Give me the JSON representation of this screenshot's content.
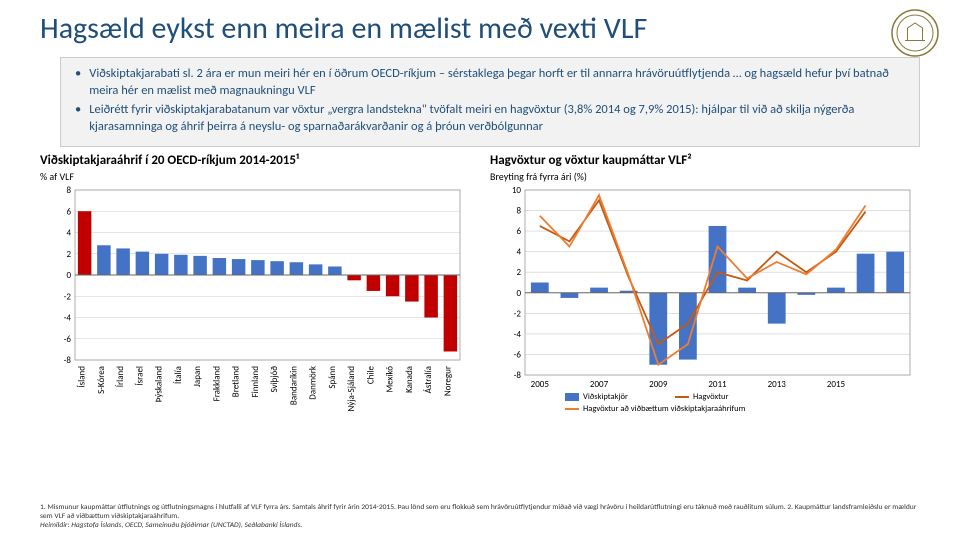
{
  "header": {
    "title": "Hagsæld eykst enn meira en mælist með vexti VLF"
  },
  "info_box": {
    "bullets": [
      "Viðskiptakjarabati sl. 2 ára er mun meiri hér en í öðrum OECD-ríkjum – sérstaklega þegar horft er til annarra hrávöruútflytjenda … og hagsæld hefur því batnað meira hér en mælist með magnaukningu VLF",
      "Leiðrétt fyrir viðskiptakjarabatanum var vöxtur „vergra landstekna\" tvöfalt meiri en hagvöxtur (3,8% 2014 og 7,9% 2015): hjálpar til við að skilja nýgerða kjarasamninga og áhrif þeirra á neyslu- og sparnaðarákvarðanir og á þróun verðbólgunnar"
    ]
  },
  "chart1": {
    "type": "bar",
    "title": "Viðskiptakjaraáhrif í 20 OECD-ríkjum 2014-2015¹",
    "ylabel": "% af VLF",
    "ylim": [
      -8,
      8
    ],
    "ytick_step": 2,
    "grid_color": "#cccccc",
    "background_color": "#ffffff",
    "default_color": "#4472c4",
    "highlight_color": "#c00000",
    "label_fontsize": 9,
    "categories": [
      "Ísland",
      "S-Kórea",
      "Írland",
      "Ísrael",
      "Þýskaland",
      "Ítalía",
      "Japan",
      "Frakkland",
      "Bretland",
      "Finnland",
      "Sviþjóð",
      "Bandaríkin",
      "Danmörk",
      "Spánn",
      "Nýja-Sjáland",
      "Chile",
      "Mexíkó",
      "Kanada",
      "Ástralía",
      "Noregur"
    ],
    "values": [
      6.0,
      2.8,
      2.5,
      2.2,
      2.0,
      1.9,
      1.8,
      1.6,
      1.5,
      1.4,
      1.3,
      1.2,
      1.0,
      0.8,
      -0.5,
      -1.5,
      -2.0,
      -2.5,
      -4.0,
      -7.2
    ],
    "highlight": [
      0,
      14,
      15,
      16,
      17,
      18,
      19
    ]
  },
  "chart2": {
    "type": "grouped-bar-line",
    "title": "Hagvöxtur og vöxtur kaupmáttar VLF²",
    "ylabel": "Breyting frá fyrra ári (%)",
    "ylim": [
      -8,
      10
    ],
    "ytick_step": 2,
    "grid_color": "#cccccc",
    "background_color": "#ffffff",
    "label_fontsize": 9,
    "years": [
      "2005",
      "2007",
      "2009",
      "2011",
      "2013",
      "2015"
    ],
    "series": [
      {
        "name": "Viðskiptakjör",
        "type": "bar",
        "color": "#4472c4",
        "values": [
          1.0,
          -0.5,
          0.5,
          0.2,
          -7.0,
          -6.5,
          6.5,
          0.5,
          -3.0,
          -0.2,
          0.5,
          3.8,
          4.0
        ]
      },
      {
        "name": "Hagvöxtur",
        "type": "line",
        "color": "#c55a11",
        "values": [
          6.5,
          5.0,
          9.0,
          1.5,
          -5.0,
          -3.0,
          2.0,
          1.2,
          4.0,
          2.0,
          4.0,
          7.9,
          0
        ]
      },
      {
        "name": "Hagvöxtur að viðbættum viðskiptakjaraáhrifum",
        "type": "line",
        "color": "#ed7d31",
        "values": [
          7.5,
          4.5,
          9.5,
          1.7,
          -7.0,
          -5.0,
          4.5,
          1.4,
          3.0,
          1.8,
          4.2,
          8.5,
          0
        ]
      }
    ],
    "legend": [
      "Viðskiptakjör",
      "Hagvöxtur",
      "Hagvöxtur að viðbættum viðskiptakjaraáhrifum"
    ]
  },
  "footnotes": {
    "line1": "1. Mismunur kaupmáttar útflutnings og útflutningsmagns í hlutfalli af VLF fyrra árs. Samtals áhrif fyrir árin 2014-2015. Þau lönd sem eru flokkuð sem hrávöruútflytjendur miðað við vægi hrávöru í heildarútflutningi eru táknuð með rauðlitum súlum.   2. Kaupmáttur landsframleiðslu er mældur sem VLF að viðbættum viðskiptakjaraáhrifum.",
    "line2": "Heimildir: Hagstofa Íslands, OECD, Sameinuðu þjóðirnar (UNCTAD), Seðlabanki Íslands."
  }
}
